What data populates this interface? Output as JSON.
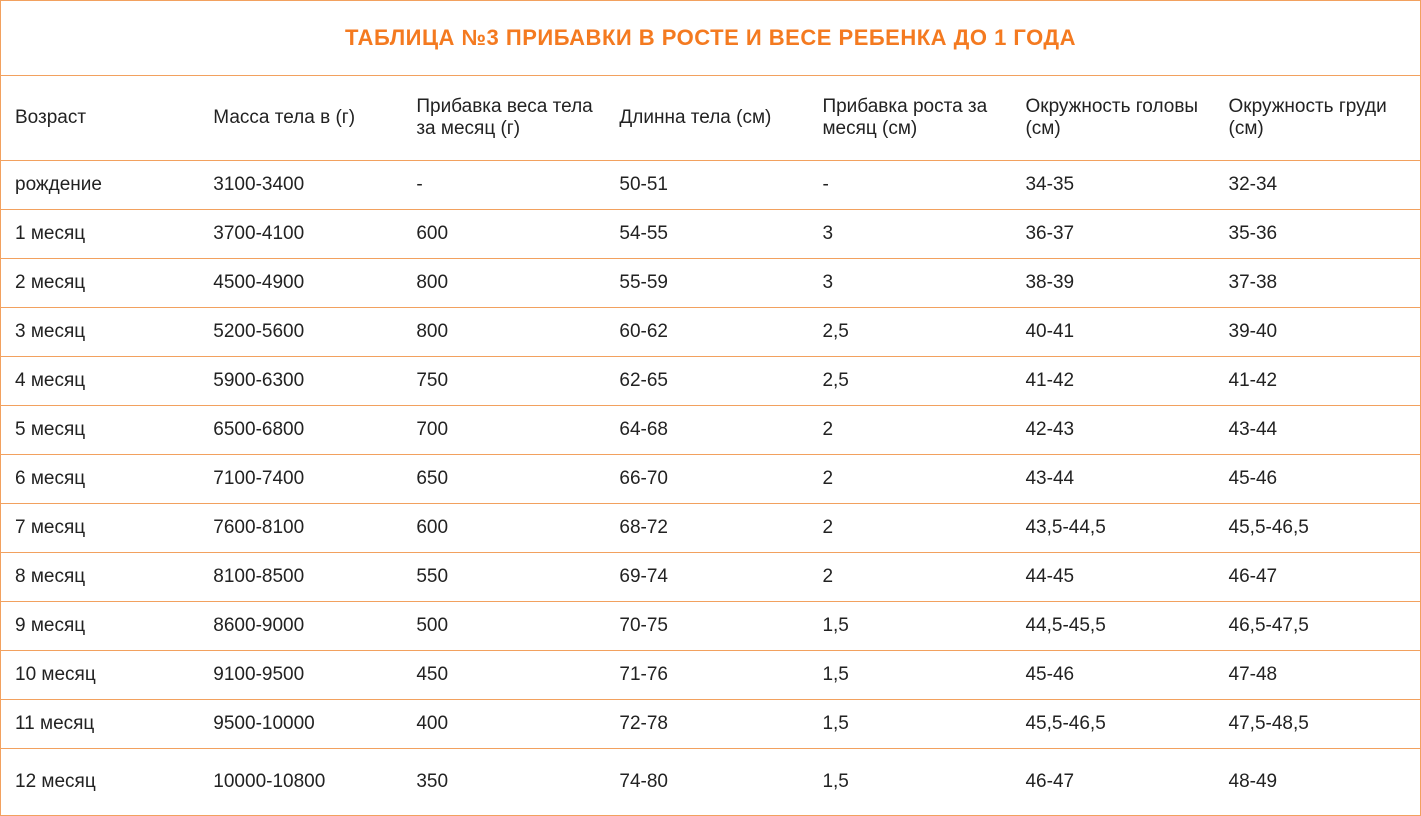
{
  "title": "ТАБЛИЦА №3  ПРИБАВКИ В РОСТЕ И ВЕСЕ РЕБЕНКА ДО 1 ГОДА",
  "title_color": "#f47a20",
  "border_color": "#f2a15f",
  "text_color": "#222222",
  "background_color": "#ffffff",
  "title_fontsize": 22,
  "header_fontsize": 19,
  "cell_fontsize": 19,
  "columns": [
    "Возраст",
    "Масса тела в (г)",
    "Прибавка веса тела за месяц (г)",
    "Длинна тела (см)",
    "Прибавка роста за месяц (см)",
    "Окружность головы (см)",
    "Окружность груди (см)"
  ],
  "rows": [
    [
      "рождение",
      "3100-3400",
      "-",
      "50-51",
      "-",
      "34-35",
      "32-34"
    ],
    [
      "1 месяц",
      "3700-4100",
      "600",
      "54-55",
      "3",
      "36-37",
      "35-36"
    ],
    [
      "2 месяц",
      "4500-4900",
      "800",
      "55-59",
      "3",
      "38-39",
      "37-38"
    ],
    [
      "3 месяц",
      "5200-5600",
      "800",
      "60-62",
      "2,5",
      "40-41",
      "39-40"
    ],
    [
      "4 месяц",
      "5900-6300",
      "750",
      "62-65",
      "2,5",
      "41-42",
      "41-42"
    ],
    [
      "5 месяц",
      "6500-6800",
      "700",
      "64-68",
      "2",
      "42-43",
      "43-44"
    ],
    [
      "6 месяц",
      "7100-7400",
      "650",
      "66-70",
      "2",
      "43-44",
      "45-46"
    ],
    [
      "7 месяц",
      "7600-8100",
      "600",
      "68-72",
      "2",
      "43,5-44,5",
      "45,5-46,5"
    ],
    [
      "8 месяц",
      "8100-8500",
      "550",
      "69-74",
      "2",
      "44-45",
      "46-47"
    ],
    [
      "9 месяц",
      "8600-9000",
      "500",
      "70-75",
      "1,5",
      "44,5-45,5",
      "46,5-47,5"
    ],
    [
      "10 месяц",
      "9100-9500",
      "450",
      "71-76",
      "1,5",
      "45-46",
      "47-48"
    ],
    [
      "11 месяц",
      "9500-10000",
      "400",
      "72-78",
      "1,5",
      "45,5-46,5",
      "47,5-48,5"
    ],
    [
      "12 месяц",
      "10000-10800",
      "350",
      "74-80",
      "1,5",
      "46-47",
      "48-49"
    ]
  ]
}
